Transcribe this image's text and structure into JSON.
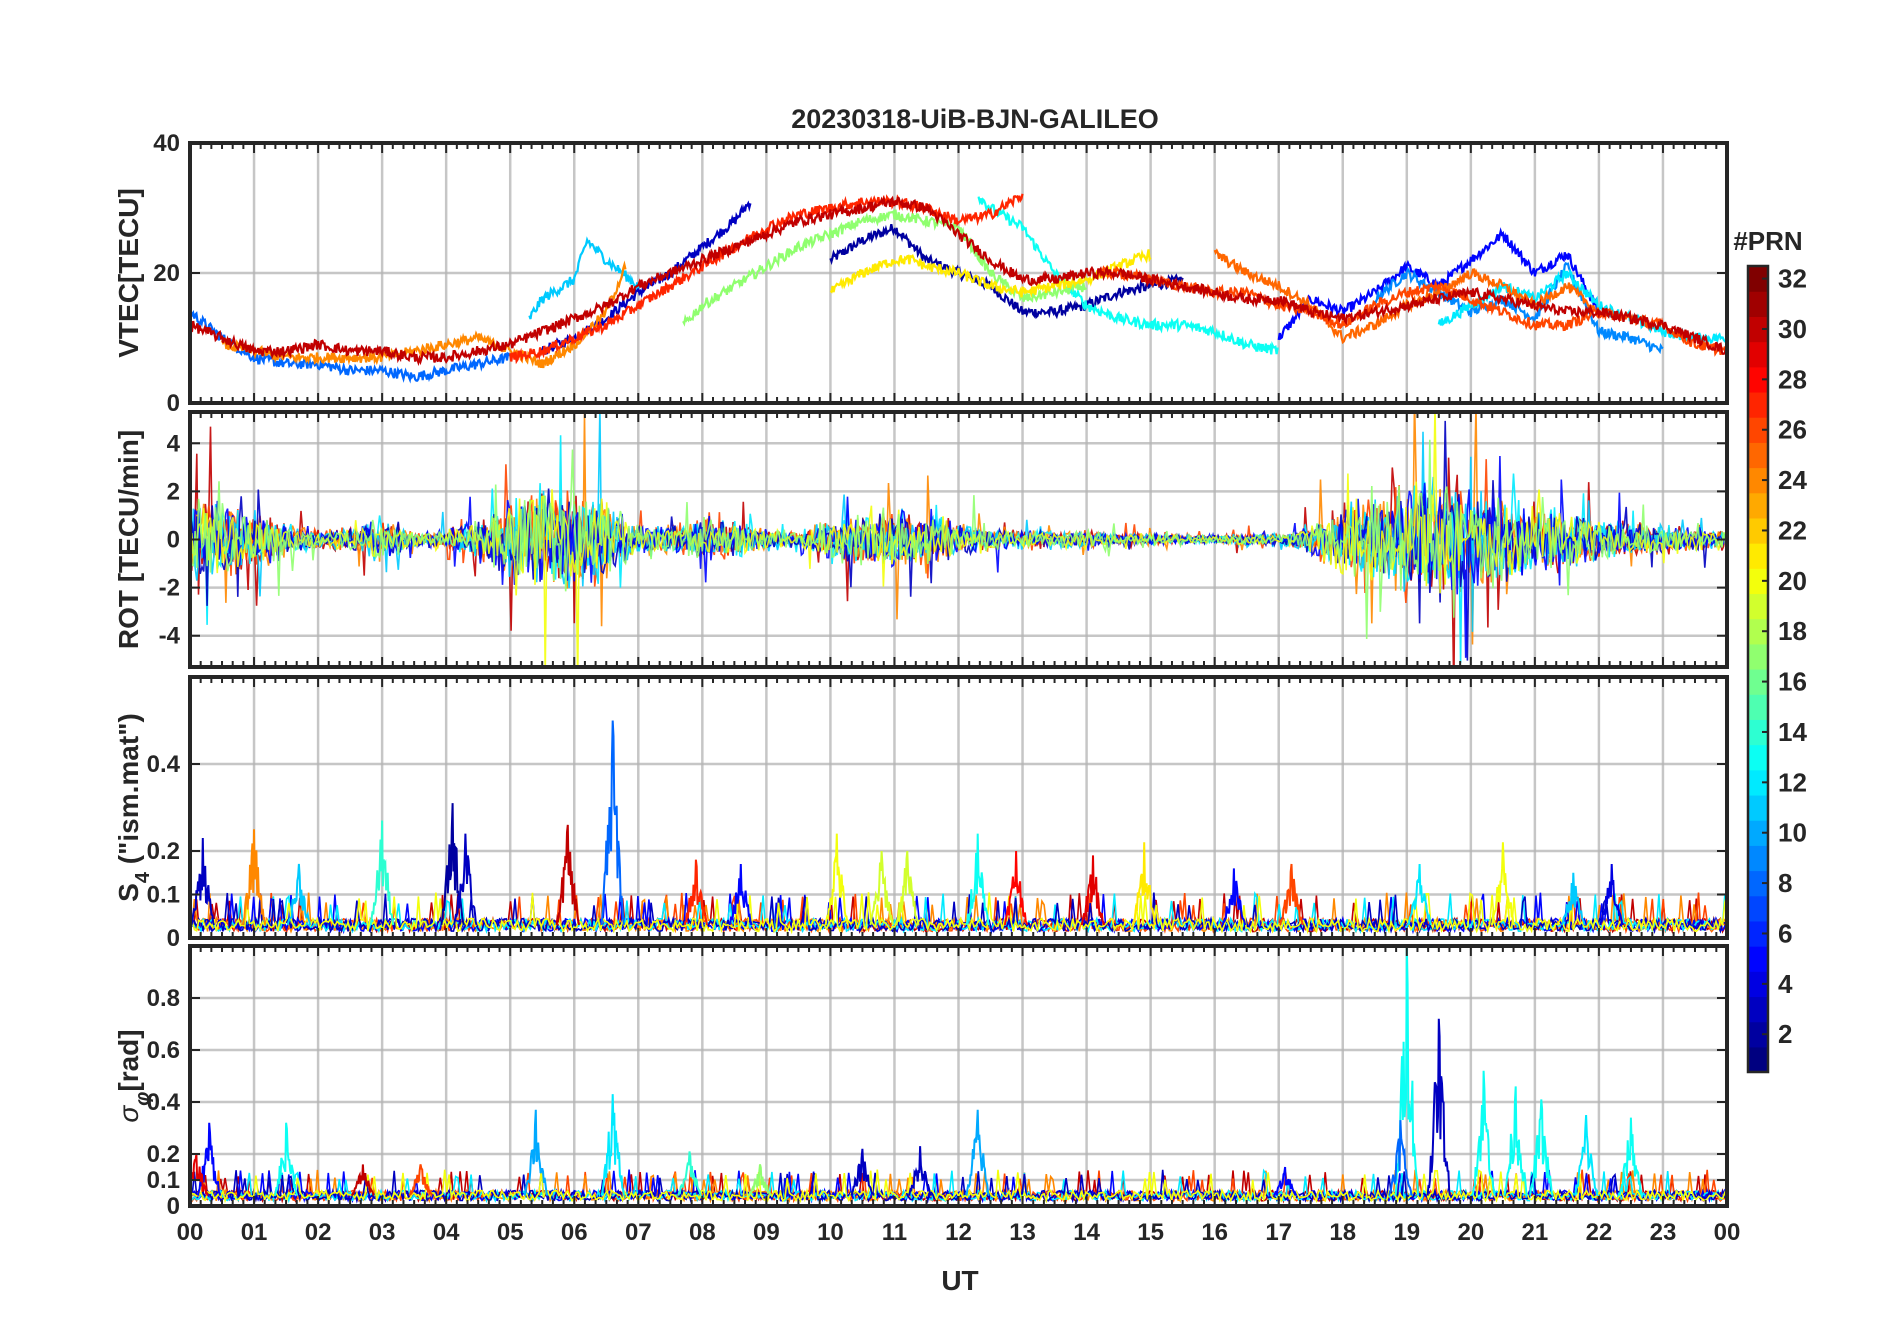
{
  "chart_data": {
    "type": "line",
    "title": "20230318-UiB-BJN-GALILEO",
    "xlabel": "UT",
    "x_ticks": [
      "00",
      "01",
      "02",
      "03",
      "04",
      "05",
      "06",
      "07",
      "08",
      "09",
      "10",
      "11",
      "12",
      "13",
      "14",
      "15",
      "16",
      "17",
      "18",
      "19",
      "20",
      "21",
      "22",
      "23",
      "00"
    ],
    "xlim_hours": [
      0,
      24
    ],
    "grid": true,
    "panels": [
      {
        "ylabel": "VTEC[TECU]",
        "ylim": [
          0,
          40
        ],
        "y_ticks": [
          0,
          20,
          40
        ],
        "y_tick_labels": [
          "0",
          "20",
          "40"
        ],
        "series": [
          {
            "prn": 2,
            "x": [
              10.0,
              10.5,
              11.0,
              11.5,
              12.0,
              12.5,
              13.0,
              13.5,
              14.0,
              14.5,
              15.0,
              15.5
            ],
            "y": [
              22,
              25,
              27,
              22,
              20,
              18,
              14,
              14,
              15,
              17,
              18,
              19
            ]
          },
          {
            "prn": 3,
            "x": [
              5.5,
              6.0,
              6.5,
              7.0,
              7.5,
              8.0,
              8.5,
              8.75
            ],
            "y": [
              8,
              10,
              13,
              17,
              20,
              24,
              28,
              31
            ]
          },
          {
            "prn": 5,
            "x": [
              17.0,
              17.5,
              18.0,
              18.5,
              19.0,
              19.5,
              20.0,
              20.5,
              21.0,
              21.5,
              22.0
            ],
            "y": [
              10,
              16,
              14,
              17,
              21,
              18,
              22,
              26,
              20,
              23,
              14
            ]
          },
          {
            "prn": 8,
            "x": [
              0.0,
              0.5,
              1.0,
              1.5,
              2.0,
              2.5,
              3.0,
              3.5,
              4.0,
              4.5,
              5.0
            ],
            "y": [
              14,
              10,
              7,
              6,
              6,
              5,
              5,
              4,
              5,
              6,
              7
            ]
          },
          {
            "prn": 9,
            "x": [
              18.5,
              19.0,
              19.5,
              20.0,
              20.5,
              21.0,
              21.5,
              22.0,
              22.5,
              23.0
            ],
            "y": [
              16,
              20,
              17,
              14,
              16,
              13,
              21,
              11,
              10,
              8
            ]
          },
          {
            "prn": 11,
            "x": [
              5.3,
              5.5,
              6.0,
              6.2,
              6.5,
              7.0
            ],
            "y": [
              13,
              16,
              19,
              25,
              22,
              18
            ]
          },
          {
            "prn": 12,
            "x": [
              19.5,
              20.0,
              20.5,
              21.0,
              21.5,
              22.0,
              22.5,
              23.0,
              23.5,
              24.0
            ],
            "y": [
              12,
              15,
              18,
              16,
              20,
              15,
              13,
              11,
              10,
              10
            ]
          },
          {
            "prn": 13,
            "x": [
              12.3,
              12.5,
              13.0,
              13.5,
              14.0,
              14.5,
              15.0,
              15.5,
              16.0,
              16.5,
              17.0
            ],
            "y": [
              32,
              30,
              27,
              20,
              15,
              13,
              12,
              12,
              11,
              9,
              8
            ]
          },
          {
            "prn": 17,
            "x": [
              7.7,
              8.0,
              8.5,
              9.0,
              9.5,
              10.0,
              10.5,
              11.0,
              11.5,
              12.0,
              12.5,
              13.0,
              13.5,
              14.0
            ],
            "y": [
              12,
              15,
              18,
              21,
              24,
              26,
              28,
              29,
              28,
              27,
              20,
              16,
              17,
              18
            ]
          },
          {
            "prn": 21,
            "x": [
              10.0,
              10.5,
              11.0,
              11.3,
              11.5,
              12.0,
              12.5,
              13.0,
              13.5,
              14.0,
              14.5,
              15.0
            ],
            "y": [
              17,
              20,
              22,
              22,
              21,
              20,
              18,
              17,
              18,
              19,
              21,
              23
            ]
          },
          {
            "prn": 24,
            "x": [
              0.5,
              1.0,
              1.5,
              2.0,
              2.5,
              3.0,
              3.5,
              4.0,
              4.5,
              5.0,
              5.5,
              6.0,
              6.5,
              6.8
            ],
            "y": [
              9,
              8,
              7,
              7,
              7,
              7,
              8,
              9,
              10,
              8,
              6,
              9,
              14,
              21
            ]
          },
          {
            "prn": 25,
            "x": [
              16.0,
              16.5,
              17.0,
              17.5,
              18.0,
              18.5,
              19.0,
              19.5,
              20.0,
              20.5,
              21.0,
              21.5,
              22.0
            ],
            "y": [
              23,
              20,
              18,
              15,
              10,
              12,
              15,
              17,
              20,
              18,
              15,
              18,
              14
            ]
          },
          {
            "prn": 26,
            "x": [
              14.2,
              14.5,
              15.0,
              15.5,
              16.0,
              16.5,
              17.0,
              17.5,
              18.0,
              18.5,
              19.0,
              19.5,
              20.0,
              20.5,
              21.0,
              21.5,
              22.0,
              22.5,
              23.0,
              23.5,
              24.0
            ],
            "y": [
              20,
              20,
              19,
              18,
              17,
              17,
              15,
              14,
              12,
              15,
              17,
              18,
              16,
              14,
              12,
              12,
              14,
              13,
              12,
              9,
              8
            ]
          },
          {
            "prn": 27,
            "x": [
              5.0,
              5.5,
              6.0,
              6.5,
              7.0,
              7.5,
              8.0,
              8.5,
              9.0,
              9.5,
              10.0,
              10.5,
              11.0,
              11.5,
              12.0,
              12.5,
              13.0
            ],
            "y": [
              7,
              8,
              10,
              12,
              15,
              18,
              21,
              24,
              27,
              29,
              30,
              31,
              31,
              30,
              28,
              29,
              32
            ]
          },
          {
            "prn": 30,
            "x": [
              0.0,
              0.5,
              1.0,
              1.5,
              2.0,
              2.5,
              3.0,
              3.5,
              4.0,
              4.5,
              5.0,
              5.5,
              6.0,
              6.5,
              7.0,
              7.5,
              8.0,
              8.5,
              9.0,
              9.5,
              10.0,
              10.5,
              11.0,
              11.5,
              12.0,
              12.5,
              13.0,
              13.5,
              14.0,
              14.5,
              15.0,
              15.5,
              16.0,
              16.5,
              17.0,
              17.5,
              18.0,
              18.5,
              19.0,
              19.5,
              20.0,
              20.5,
              21.0,
              21.5,
              22.0,
              22.5,
              23.0,
              23.5,
              24.0
            ],
            "y": [
              12,
              10,
              8,
              8,
              9,
              8,
              8,
              7,
              7,
              8,
              9,
              11,
              13,
              15,
              18,
              20,
              22,
              24,
              26,
              28,
              29,
              30,
              31,
              30,
              26,
              22,
              19,
              19,
              20,
              20,
              19,
              18,
              17,
              16,
              16,
              14,
              13,
              14,
              15,
              16,
              17,
              16,
              15,
              14,
              14,
              13,
              12,
              10,
              8
            ]
          }
        ]
      },
      {
        "ylabel": "ROT [TECU/min]",
        "ylim": [
          -5.3,
          5.3
        ],
        "y_ticks": [
          -4,
          -2,
          0,
          2,
          4
        ],
        "y_tick_labels": [
          "-4",
          "-2",
          "0",
          "2",
          "4"
        ],
        "envelope": {
          "x": [
            0.0,
            0.5,
            1.0,
            1.5,
            2.0,
            2.5,
            3.0,
            3.5,
            4.0,
            4.5,
            5.0,
            5.5,
            6.0,
            6.5,
            7.0,
            7.5,
            8.0,
            8.5,
            9.0,
            9.5,
            10.0,
            10.5,
            11.0,
            11.5,
            12.0,
            12.5,
            13.0,
            13.5,
            14.0,
            14.5,
            15.0,
            15.5,
            16.0,
            16.5,
            17.0,
            17.5,
            18.0,
            18.5,
            19.0,
            19.5,
            20.0,
            20.5,
            21.0,
            21.5,
            22.0,
            22.5,
            23.0,
            23.5,
            24.0
          ],
          "amp": [
            3.5,
            3.2,
            2.5,
            1.4,
            0.8,
            1.0,
            1.6,
            0.6,
            0.8,
            1.8,
            3.5,
            5.0,
            4.5,
            3.5,
            1.2,
            1.2,
            1.8,
            1.5,
            1.0,
            0.6,
            1.8,
            2.2,
            2.6,
            2.2,
            1.4,
            1.0,
            0.8,
            0.7,
            0.7,
            0.5,
            0.5,
            0.4,
            0.4,
            0.5,
            0.4,
            1.2,
            3.0,
            3.5,
            5.0,
            4.8,
            4.0,
            3.5,
            3.0,
            2.5,
            1.8,
            1.3,
            1.2,
            1.0,
            0.9
          ]
        }
      },
      {
        "ylabel": "S4 (\"ism.mat\")",
        "ylabel_main": "S",
        "ylabel_sub": "4",
        "ylabel_rest": " (\"ism.mat\")",
        "ylim": [
          0,
          0.6
        ],
        "y_ticks": [
          0,
          0.1,
          0.2,
          0.4
        ],
        "y_tick_labels": [
          "0",
          "0.1",
          "0.2",
          "0.4"
        ],
        "baseline": 0.03,
        "peaks": [
          {
            "prn": 3,
            "x": 0.2,
            "y": 0.23
          },
          {
            "prn": 24,
            "x": 1.0,
            "y": 0.25
          },
          {
            "prn": 11,
            "x": 1.7,
            "y": 0.17
          },
          {
            "prn": 14,
            "x": 3.0,
            "y": 0.27
          },
          {
            "prn": 2,
            "x": 4.1,
            "y": 0.31
          },
          {
            "prn": 3,
            "x": 4.3,
            "y": 0.24
          },
          {
            "prn": 30,
            "x": 5.9,
            "y": 0.26
          },
          {
            "prn": 8,
            "x": 6.6,
            "y": 0.5
          },
          {
            "prn": 27,
            "x": 7.9,
            "y": 0.18
          },
          {
            "prn": 5,
            "x": 8.6,
            "y": 0.17
          },
          {
            "prn": 20,
            "x": 10.1,
            "y": 0.24
          },
          {
            "prn": 19,
            "x": 10.8,
            "y": 0.2
          },
          {
            "prn": 19,
            "x": 11.2,
            "y": 0.2
          },
          {
            "prn": 13,
            "x": 12.3,
            "y": 0.24
          },
          {
            "prn": 28,
            "x": 12.9,
            "y": 0.2
          },
          {
            "prn": 29,
            "x": 14.1,
            "y": 0.19
          },
          {
            "prn": 21,
            "x": 14.9,
            "y": 0.22
          },
          {
            "prn": 5,
            "x": 16.3,
            "y": 0.16
          },
          {
            "prn": 26,
            "x": 17.2,
            "y": 0.17
          },
          {
            "prn": 12,
            "x": 19.2,
            "y": 0.17
          },
          {
            "prn": 20,
            "x": 20.5,
            "y": 0.22
          },
          {
            "prn": 11,
            "x": 21.6,
            "y": 0.15
          },
          {
            "prn": 4,
            "x": 22.2,
            "y": 0.17
          }
        ]
      },
      {
        "ylabel": "σφ[rad]",
        "ylabel_main": "σ",
        "ylabel_sub": "φ",
        "ylabel_rest": "[rad]",
        "ylim": [
          0,
          1.0
        ],
        "y_ticks": [
          0,
          0.1,
          0.2,
          0.4,
          0.6,
          0.8
        ],
        "y_tick_labels": [
          "0",
          "0.1",
          "0.2",
          "0.4",
          "0.6",
          "0.8"
        ],
        "baseline": 0.04,
        "peaks": [
          {
            "prn": 5,
            "x": 0.3,
            "y": 0.32
          },
          {
            "prn": 29,
            "x": 0.1,
            "y": 0.2
          },
          {
            "prn": 13,
            "x": 1.5,
            "y": 0.32
          },
          {
            "prn": 30,
            "x": 2.7,
            "y": 0.16
          },
          {
            "prn": 26,
            "x": 3.6,
            "y": 0.16
          },
          {
            "prn": 10,
            "x": 5.4,
            "y": 0.37
          },
          {
            "prn": 12,
            "x": 6.6,
            "y": 0.43
          },
          {
            "prn": 14,
            "x": 7.8,
            "y": 0.21
          },
          {
            "prn": 17,
            "x": 8.9,
            "y": 0.16
          },
          {
            "prn": 3,
            "x": 10.5,
            "y": 0.22
          },
          {
            "prn": 3,
            "x": 11.4,
            "y": 0.23
          },
          {
            "prn": 10,
            "x": 12.3,
            "y": 0.37
          },
          {
            "prn": 5,
            "x": 17.1,
            "y": 0.15
          },
          {
            "prn": 13,
            "x": 19.0,
            "y": 1.0
          },
          {
            "prn": 8,
            "x": 18.9,
            "y": 0.33
          },
          {
            "prn": 3,
            "x": 19.5,
            "y": 0.72
          },
          {
            "prn": 13,
            "x": 20.2,
            "y": 0.52
          },
          {
            "prn": 13,
            "x": 20.7,
            "y": 0.46
          },
          {
            "prn": 13,
            "x": 21.1,
            "y": 0.41
          },
          {
            "prn": 12,
            "x": 21.8,
            "y": 0.35
          },
          {
            "prn": 13,
            "x": 22.5,
            "y": 0.34
          }
        ]
      }
    ],
    "colorbar": {
      "label": "#PRN",
      "colormap": "jet",
      "range": [
        1,
        32
      ],
      "ticks": [
        2,
        4,
        6,
        8,
        10,
        12,
        14,
        16,
        18,
        20,
        22,
        24,
        26,
        28,
        30,
        32
      ],
      "tick_labels": [
        "2",
        "4",
        "6",
        "8",
        "10",
        "12",
        "14",
        "16",
        "18",
        "20",
        "22",
        "24",
        "26",
        "28",
        "30",
        "32"
      ]
    }
  }
}
